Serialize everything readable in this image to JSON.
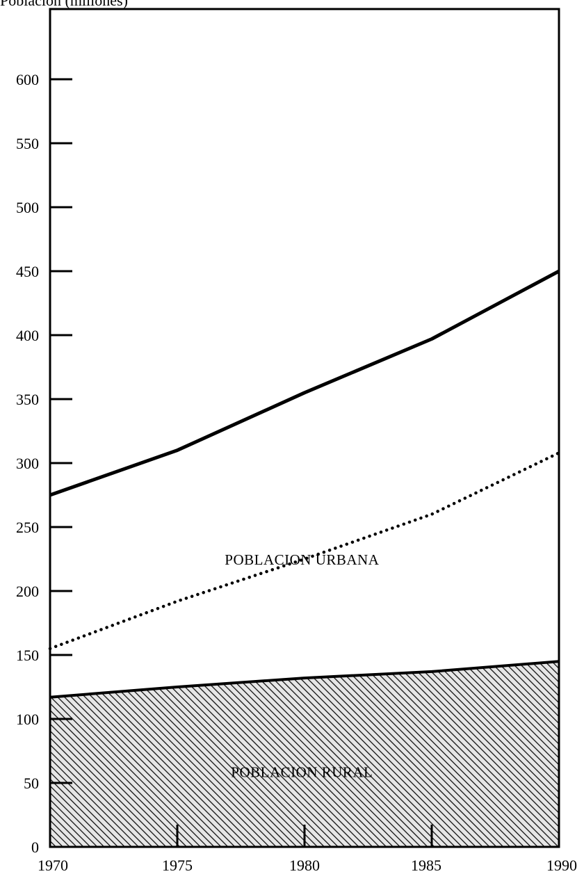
{
  "chart_data": {
    "type": "area",
    "title": "",
    "ylabel": "Población (millones)",
    "xlabel": "",
    "xlim": [
      1970,
      1990
    ],
    "ylim": [
      0,
      650
    ],
    "x_ticks": [
      1970,
      1975,
      1980,
      1985,
      1990
    ],
    "y_ticks": [
      0,
      50,
      100,
      150,
      200,
      250,
      300,
      350,
      400,
      450,
      500,
      550,
      600
    ],
    "grid": false,
    "x": [
      1970,
      1975,
      1980,
      1985,
      1990
    ],
    "series": [
      {
        "values": [
          275,
          310,
          355,
          397,
          450
        ]
      },
      {
        "values": [
          155,
          192,
          225,
          260,
          308
        ]
      },
      {
        "values": [
          117,
          125,
          132,
          137,
          145
        ]
      }
    ],
    "annotations": [
      {
        "text": "POBLACION URBANA",
        "x": 1979.9,
        "y": 225
      },
      {
        "text": "POBLACION RURAL",
        "x": 1979.9,
        "y": 59
      }
    ]
  }
}
